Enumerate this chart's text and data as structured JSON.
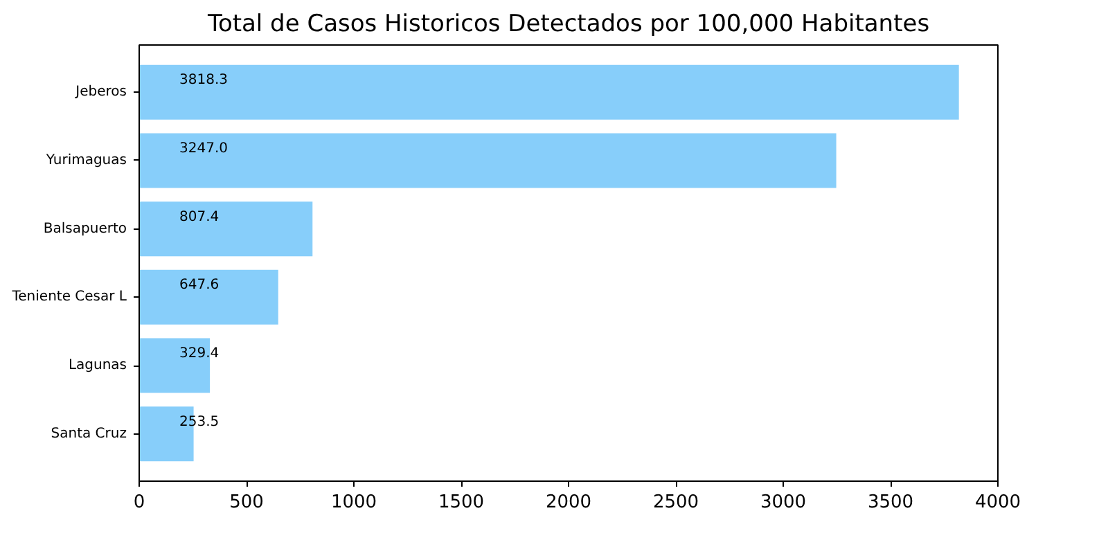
{
  "chart_data": {
    "type": "bar",
    "orientation": "horizontal",
    "title": "Total de Casos Historicos Detectados por 100,000 Habitantes",
    "categories": [
      "Jeberos",
      "Yurimaguas",
      "Balsapuerto",
      "Teniente Cesar L",
      "Lagunas",
      "Santa Cruz"
    ],
    "values": [
      3818.3,
      3247.0,
      807.4,
      647.6,
      329.4,
      253.5
    ],
    "value_labels": [
      "3818.3",
      "3247.0",
      "807.4",
      "647.6",
      "329.4",
      "253.5"
    ],
    "color": "#87cefa",
    "xlim": [
      0,
      4000
    ],
    "xticks": [
      0,
      500,
      1000,
      1500,
      2000,
      2500,
      3000,
      3500,
      4000
    ],
    "grid": false
  }
}
